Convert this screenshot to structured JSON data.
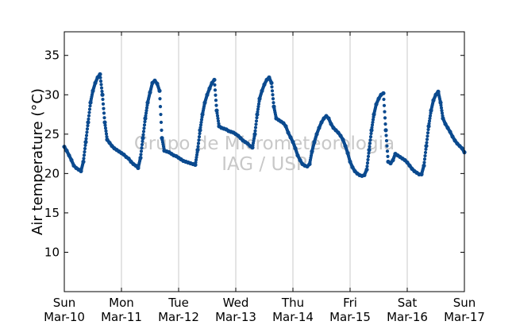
{
  "chart_data": {
    "type": "scatter",
    "title": "",
    "xlabel": "",
    "ylabel": "Air temperature (°C)",
    "ylim": [
      5,
      38
    ],
    "yticks": [
      10,
      15,
      20,
      25,
      30,
      35
    ],
    "xlim": [
      "2013-03-10 00:00",
      "2013-03-17 00:00"
    ],
    "xticks": [
      {
        "day": "Sun",
        "date": "Mar-10"
      },
      {
        "day": "Mon",
        "date": "Mar-11"
      },
      {
        "day": "Tue",
        "date": "Mar-12"
      },
      {
        "day": "Wed",
        "date": "Mar-13"
      },
      {
        "day": "Thu",
        "date": "Mar-14"
      },
      {
        "day": "Fri",
        "date": "Mar-15"
      },
      {
        "day": "Sat",
        "date": "Mar-16"
      },
      {
        "day": "Sun",
        "date": "Mar-17"
      }
    ],
    "grid": "vertical",
    "marker_color": "#0b4a8f",
    "series": [
      {
        "x": [
          "03-10 00:00",
          "03-10 01:00",
          "03-10 02:00",
          "03-10 03:00",
          "03-10 04:00",
          "03-10 05:00",
          "03-10 06:00",
          "03-10 07:00",
          "03-10 08:00",
          "03-10 09:00",
          "03-10 10:00",
          "03-10 11:00",
          "03-10 12:00",
          "03-10 13:00",
          "03-10 14:00",
          "03-10 15:00",
          "03-10 16:00",
          "03-10 17:00",
          "03-10 18:00",
          "03-10 19:00",
          "03-10 20:00",
          "03-10 21:00",
          "03-10 22:00",
          "03-10 23:00",
          "03-11 00:00",
          "03-11 01:00",
          "03-11 02:00",
          "03-11 03:00",
          "03-11 04:00",
          "03-11 05:00",
          "03-11 06:00",
          "03-11 07:00",
          "03-11 08:00",
          "03-11 09:00",
          "03-11 10:00",
          "03-11 11:00",
          "03-11 12:00",
          "03-11 13:00",
          "03-11 14:00",
          "03-11 15:00",
          "03-11 16:00",
          "03-11 17:00",
          "03-11 18:00",
          "03-11 19:00",
          "03-11 20:00",
          "03-11 21:00",
          "03-11 22:00",
          "03-11 23:00",
          "03-12 00:00",
          "03-12 01:00",
          "03-12 02:00",
          "03-12 03:00",
          "03-12 04:00",
          "03-12 05:00",
          "03-12 06:00",
          "03-12 07:00",
          "03-12 08:00",
          "03-12 09:00",
          "03-12 10:00",
          "03-12 11:00",
          "03-12 12:00",
          "03-12 13:00",
          "03-12 14:00",
          "03-12 15:00",
          "03-12 16:00",
          "03-12 17:00",
          "03-12 18:00",
          "03-12 19:00",
          "03-12 20:00",
          "03-12 21:00",
          "03-12 22:00",
          "03-12 23:00",
          "03-13 00:00",
          "03-13 01:00",
          "03-13 02:00",
          "03-13 03:00",
          "03-13 04:00",
          "03-13 05:00",
          "03-13 06:00",
          "03-13 07:00",
          "03-13 08:00",
          "03-13 09:00",
          "03-13 10:00",
          "03-13 11:00",
          "03-13 12:00",
          "03-13 13:00",
          "03-13 14:00",
          "03-13 15:00",
          "03-13 16:00",
          "03-13 17:00",
          "03-13 18:00",
          "03-13 19:00",
          "03-13 20:00",
          "03-13 21:00",
          "03-13 22:00",
          "03-13 23:00",
          "03-14 00:00",
          "03-14 01:00",
          "03-14 02:00",
          "03-14 03:00",
          "03-14 04:00",
          "03-14 05:00",
          "03-14 06:00",
          "03-14 07:00",
          "03-14 08:00",
          "03-14 09:00",
          "03-14 10:00",
          "03-14 11:00",
          "03-14 12:00",
          "03-14 13:00",
          "03-14 14:00",
          "03-14 15:00",
          "03-14 16:00",
          "03-14 17:00",
          "03-14 18:00",
          "03-14 19:00",
          "03-14 20:00",
          "03-14 21:00",
          "03-14 22:00",
          "03-14 23:00",
          "03-15 00:00",
          "03-15 01:00",
          "03-15 02:00",
          "03-15 03:00",
          "03-15 04:00",
          "03-15 05:00",
          "03-15 06:00",
          "03-15 07:00",
          "03-15 08:00",
          "03-15 09:00",
          "03-15 10:00",
          "03-15 11:00",
          "03-15 12:00",
          "03-15 13:00",
          "03-15 14:00",
          "03-15 15:00",
          "03-15 16:00",
          "03-15 17:00",
          "03-15 18:00",
          "03-15 19:00",
          "03-15 20:00",
          "03-15 21:00",
          "03-15 22:00",
          "03-15 23:00",
          "03-16 00:00",
          "03-16 01:00",
          "03-16 02:00",
          "03-16 03:00",
          "03-16 04:00",
          "03-16 05:00",
          "03-16 06:00",
          "03-16 07:00",
          "03-16 08:00",
          "03-16 09:00",
          "03-16 10:00",
          "03-16 11:00",
          "03-16 12:00",
          "03-16 13:00",
          "03-16 14:00",
          "03-16 15:00",
          "03-16 16:00",
          "03-16 17:00",
          "03-16 18:00",
          "03-16 19:00",
          "03-16 20:00",
          "03-16 21:00",
          "03-16 22:00",
          "03-16 23:00",
          "03-17 00:00"
        ],
        "y": [
          23.4,
          22.9,
          22.3,
          21.7,
          21.0,
          20.7,
          20.5,
          20.3,
          21.5,
          24.0,
          26.5,
          29.0,
          30.5,
          31.5,
          32.2,
          32.6,
          30.0,
          26.5,
          24.3,
          23.9,
          23.5,
          23.2,
          23.0,
          22.8,
          22.6,
          22.4,
          22.1,
          21.9,
          21.5,
          21.2,
          21.0,
          20.7,
          22.0,
          24.5,
          27.0,
          29.0,
          30.3,
          31.5,
          31.8,
          31.4,
          30.5,
          24.5,
          22.9,
          22.8,
          22.7,
          22.5,
          22.3,
          22.2,
          22.0,
          21.8,
          21.6,
          21.5,
          21.4,
          21.3,
          21.2,
          21.1,
          23.0,
          25.5,
          27.5,
          29.0,
          30.0,
          30.8,
          31.5,
          31.9,
          28.0,
          26.0,
          25.8,
          25.7,
          25.6,
          25.4,
          25.3,
          25.2,
          25.0,
          24.8,
          24.5,
          24.2,
          24.0,
          23.8,
          23.5,
          23.3,
          25.0,
          27.5,
          29.5,
          30.5,
          31.3,
          31.9,
          32.2,
          31.5,
          28.5,
          27.0,
          26.8,
          26.6,
          26.4,
          26.0,
          25.2,
          24.6,
          24.0,
          23.2,
          22.3,
          21.7,
          21.2,
          21.0,
          20.9,
          21.2,
          22.8,
          24.0,
          25.0,
          25.8,
          26.5,
          27.0,
          27.3,
          27.0,
          26.3,
          25.8,
          25.5,
          25.2,
          24.8,
          24.3,
          23.5,
          22.6,
          21.5,
          20.8,
          20.3,
          20.0,
          19.8,
          19.7,
          19.8,
          20.5,
          23.0,
          25.5,
          27.5,
          28.8,
          29.5,
          30.0,
          30.2,
          25.5,
          21.5,
          21.3,
          21.7,
          22.5,
          22.3,
          22.1,
          21.9,
          21.7,
          21.4,
          21.0,
          20.6,
          20.3,
          20.1,
          19.9,
          19.9,
          21.0,
          23.5,
          26.0,
          28.0,
          29.3,
          30.0,
          30.4,
          29.0,
          27.0,
          26.3,
          25.8,
          25.3,
          24.7,
          24.2,
          23.8,
          23.5,
          23.2,
          22.7
        ]
      }
    ],
    "annotations": [
      "Grupo de Micrometeorologia",
      "IAG / USP"
    ]
  }
}
